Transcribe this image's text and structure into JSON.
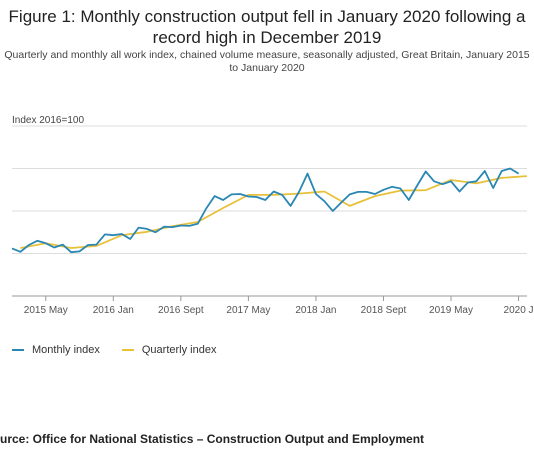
{
  "header": {
    "title": "Figure 1: Monthly construction output fell in January 2020 following a record high in December 2019",
    "subtitle": "Quarterly and monthly all work index, chained volume measure, seasonally adjusted, Great Britain, January 2015 to January 2020"
  },
  "footer": {
    "source": "urce: Office for National Statistics – Construction Output and Employment"
  },
  "chart_data": {
    "type": "line",
    "ylabel": "Index 2016=100",
    "ylim": [
      80,
      120
    ],
    "yticks": [
      80,
      90,
      100,
      110,
      120
    ],
    "grid": true,
    "x_tick_labels": [
      {
        "label": "2015 May",
        "month": 4
      },
      {
        "label": "2016 Jan",
        "month": 12
      },
      {
        "label": "2016 Sept",
        "month": 20
      },
      {
        "label": "2017 May",
        "month": 28
      },
      {
        "label": "2018 Jan",
        "month": 36
      },
      {
        "label": "2018 Sept",
        "month": 44
      },
      {
        "label": "2019 May",
        "month": 52
      },
      {
        "label": "2020 J",
        "month": 60
      }
    ],
    "legend_position": "bottom-left",
    "series": [
      {
        "name": "Monthly index",
        "color": "#2a87b3",
        "values": [
          91.2,
          90.4,
          92.0,
          93.0,
          92.4,
          91.4,
          92.1,
          90.3,
          90.5,
          92.0,
          92.1,
          94.5,
          94.3,
          94.6,
          93.4,
          96.1,
          95.8,
          95.0,
          96.3,
          96.2,
          96.6,
          96.5,
          97.0,
          100.6,
          103.5,
          102.6,
          103.9,
          104.0,
          103.4,
          103.3,
          102.6,
          104.6,
          103.8,
          101.2,
          104.5,
          108.8,
          104.0,
          102.3,
          100.0,
          102.0,
          103.9,
          104.5,
          104.5,
          104.0,
          105.0,
          105.7,
          105.3,
          102.6,
          106.0,
          109.3,
          107.0,
          106.3,
          107.0,
          104.6,
          106.7,
          107.0,
          109.4,
          105.4,
          109.4,
          110.0,
          108.8
        ]
      },
      {
        "name": "Quarterly index",
        "color": "#e8c13a",
        "points": [
          [
            1,
            91.3
          ],
          [
            4,
            92.4
          ],
          [
            7,
            91.3
          ],
          [
            10,
            91.8
          ],
          [
            13,
            94.3
          ],
          [
            16,
            95.1
          ],
          [
            19,
            96.4
          ],
          [
            22,
            97.4
          ],
          [
            25,
            100.7
          ],
          [
            28,
            103.8
          ],
          [
            31,
            103.8
          ],
          [
            34,
            104.1
          ],
          [
            37,
            104.6
          ],
          [
            40,
            101.2
          ],
          [
            43,
            103.5
          ],
          [
            46,
            104.8
          ],
          [
            49,
            104.9
          ],
          [
            52,
            107.3
          ],
          [
            55,
            106.5
          ],
          [
            58,
            107.8
          ],
          [
            61,
            108.2
          ]
        ]
      }
    ]
  }
}
